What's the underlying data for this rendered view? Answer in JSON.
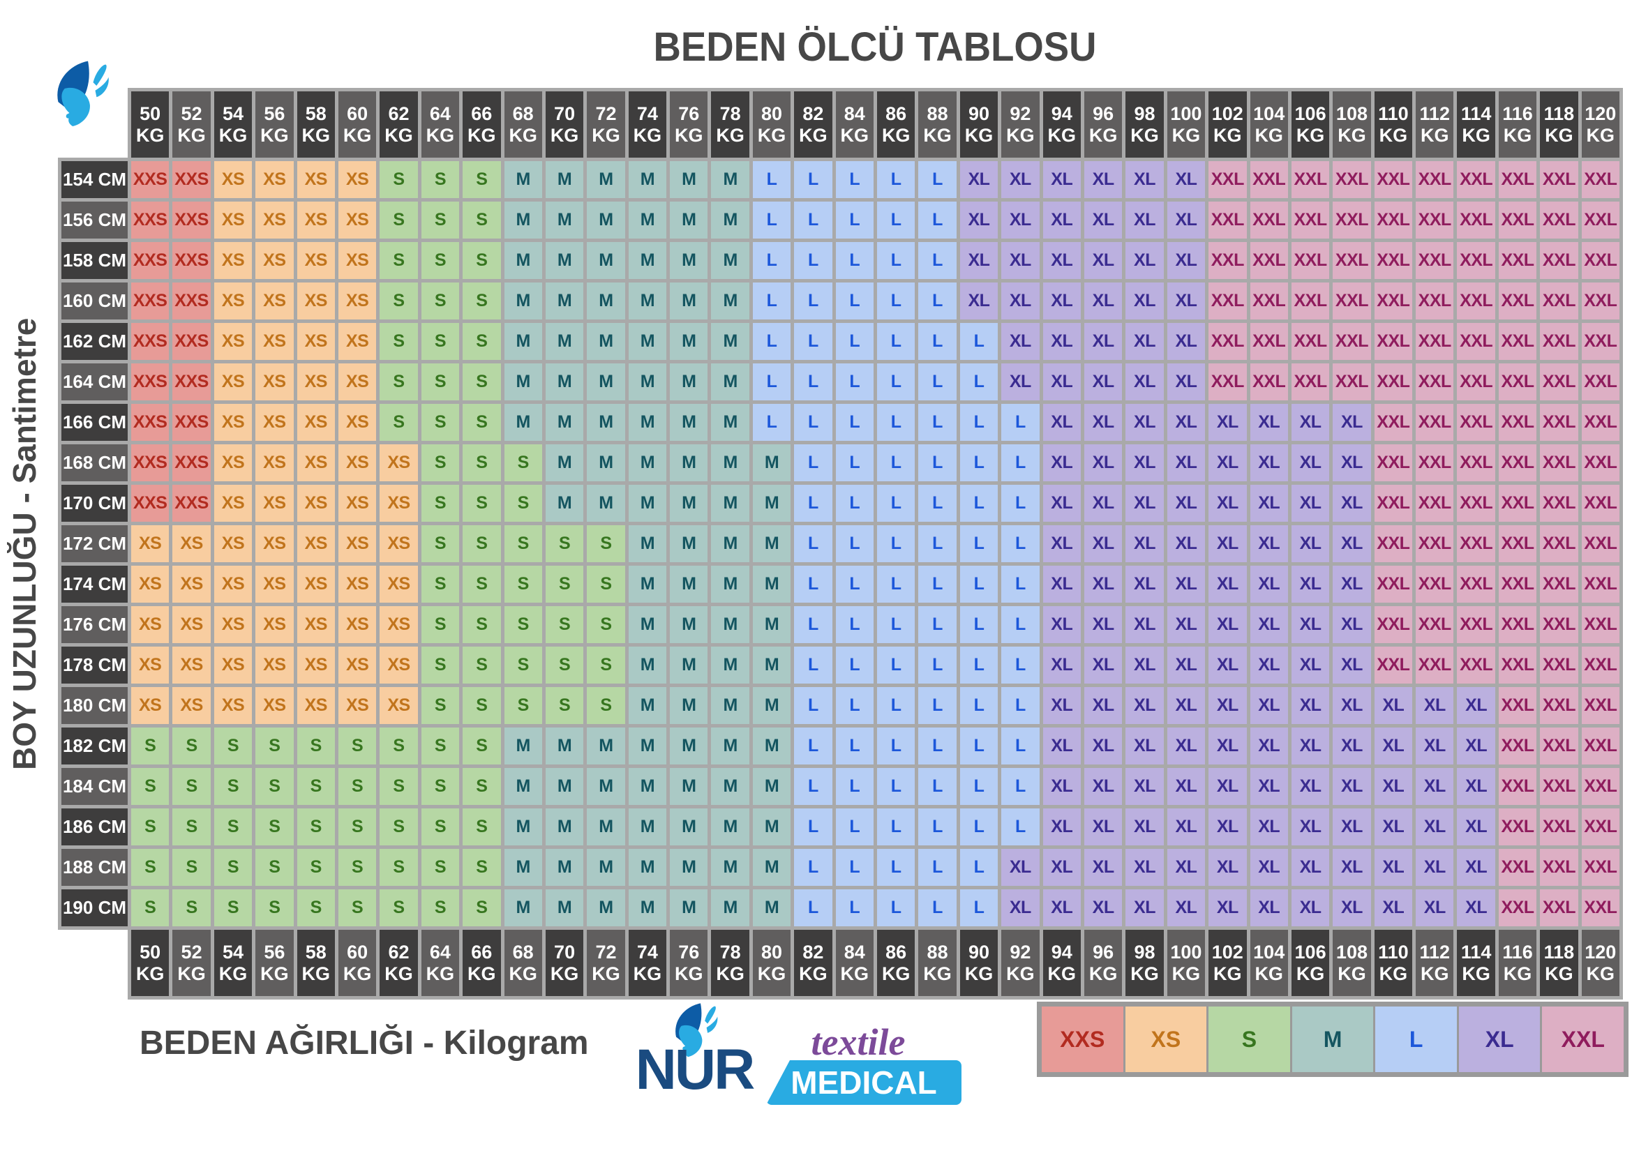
{
  "title": "BEDEN ÖLCÜ TABLOSU",
  "y_axis_label": "BOY UZUNLUĞU - Santimetre",
  "x_axis_label": "BEDEN AĞIRLIĞI - Kilogram",
  "weight_unit": "KG",
  "height_unit": "CM",
  "weights_kg": [
    50,
    52,
    54,
    56,
    58,
    60,
    62,
    64,
    66,
    68,
    70,
    72,
    74,
    76,
    78,
    80,
    82,
    84,
    86,
    88,
    90,
    92,
    94,
    96,
    98,
    100,
    102,
    104,
    106,
    108,
    110,
    112,
    114,
    116,
    118,
    120
  ],
  "heights_cm": [
    154,
    156,
    158,
    160,
    162,
    164,
    166,
    168,
    170,
    172,
    174,
    176,
    178,
    180,
    182,
    184,
    186,
    188,
    190
  ],
  "legend": [
    "XXS",
    "XS",
    "S",
    "M",
    "L",
    "XL",
    "XXL"
  ],
  "size_colors": {
    "XXS": {
      "bg": "#e79b97",
      "text": "#b22b20"
    },
    "XS": {
      "bg": "#f8cda0",
      "text": "#c1741c"
    },
    "S": {
      "bg": "#b6d7a4",
      "text": "#37761f"
    },
    "M": {
      "bg": "#aac9c5",
      "text": "#145560"
    },
    "L": {
      "bg": "#b6cef5",
      "text": "#1c57da"
    },
    "XL": {
      "bg": "#bbb0df",
      "text": "#3a2b90"
    },
    "XXL": {
      "bg": "#ddafc4",
      "text": "#8f1c5d"
    }
  },
  "header_colors": {
    "dark": "#3e3d3d",
    "light": "#605e5e",
    "text": "#ffffff"
  },
  "grid_color": "#a9a9a9",
  "logo": {
    "name": "NUR",
    "tagline1": "textile",
    "tagline2": "MEDICAL"
  },
  "chart_data": {
    "type": "heatmap",
    "title": "BEDEN ÖLCÜ TABLOSU",
    "xlabel": "BEDEN AĞIRLIĞI - Kilogram",
    "ylabel": "BOY UZUNLUĞU - Santimetre",
    "x_categories_kg": [
      50,
      52,
      54,
      56,
      58,
      60,
      62,
      64,
      66,
      68,
      70,
      72,
      74,
      76,
      78,
      80,
      82,
      84,
      86,
      88,
      90,
      92,
      94,
      96,
      98,
      100,
      102,
      104,
      106,
      108,
      110,
      112,
      114,
      116,
      118,
      120
    ],
    "y_categories_cm": [
      154,
      156,
      158,
      160,
      162,
      164,
      166,
      168,
      170,
      172,
      174,
      176,
      178,
      180,
      182,
      184,
      186,
      188,
      190
    ],
    "legend_entries": [
      "XXS",
      "XS",
      "S",
      "M",
      "L",
      "XL",
      "XXL"
    ],
    "legend_position": "bottom-right",
    "x_axis_shown": "top and bottom",
    "encoding": "rows are run-length encoded as [size, count] pairs left-to-right across the 36 weight columns",
    "rows": [
      {
        "height": 154,
        "runs": [
          [
            "XXS",
            2
          ],
          [
            "XS",
            4
          ],
          [
            "S",
            3
          ],
          [
            "M",
            6
          ],
          [
            "L",
            5
          ],
          [
            "XL",
            6
          ],
          [
            "XXL",
            10
          ]
        ]
      },
      {
        "height": 156,
        "runs": [
          [
            "XXS",
            2
          ],
          [
            "XS",
            4
          ],
          [
            "S",
            3
          ],
          [
            "M",
            6
          ],
          [
            "L",
            5
          ],
          [
            "XL",
            6
          ],
          [
            "XXL",
            10
          ]
        ]
      },
      {
        "height": 158,
        "runs": [
          [
            "XXS",
            2
          ],
          [
            "XS",
            4
          ],
          [
            "S",
            3
          ],
          [
            "M",
            6
          ],
          [
            "L",
            5
          ],
          [
            "XL",
            6
          ],
          [
            "XXL",
            10
          ]
        ]
      },
      {
        "height": 160,
        "runs": [
          [
            "XXS",
            2
          ],
          [
            "XS",
            4
          ],
          [
            "S",
            3
          ],
          [
            "M",
            6
          ],
          [
            "L",
            5
          ],
          [
            "XL",
            6
          ],
          [
            "XXL",
            10
          ]
        ]
      },
      {
        "height": 162,
        "runs": [
          [
            "XXS",
            2
          ],
          [
            "XS",
            4
          ],
          [
            "S",
            3
          ],
          [
            "M",
            6
          ],
          [
            "L",
            6
          ],
          [
            "XL",
            5
          ],
          [
            "XXL",
            10
          ]
        ]
      },
      {
        "height": 164,
        "runs": [
          [
            "XXS",
            2
          ],
          [
            "XS",
            4
          ],
          [
            "S",
            3
          ],
          [
            "M",
            6
          ],
          [
            "L",
            6
          ],
          [
            "XL",
            5
          ],
          [
            "XXL",
            10
          ]
        ]
      },
      {
        "height": 166,
        "runs": [
          [
            "XXS",
            2
          ],
          [
            "XS",
            4
          ],
          [
            "S",
            3
          ],
          [
            "M",
            6
          ],
          [
            "L",
            7
          ],
          [
            "XL",
            8
          ],
          [
            "XXL",
            6
          ]
        ]
      },
      {
        "height": 168,
        "runs": [
          [
            "XXS",
            2
          ],
          [
            "XS",
            5
          ],
          [
            "S",
            3
          ],
          [
            "M",
            6
          ],
          [
            "L",
            6
          ],
          [
            "XL",
            8
          ],
          [
            "XXL",
            6
          ]
        ]
      },
      {
        "height": 170,
        "runs": [
          [
            "XXS",
            2
          ],
          [
            "XS",
            5
          ],
          [
            "S",
            3
          ],
          [
            "M",
            6
          ],
          [
            "L",
            6
          ],
          [
            "XL",
            8
          ],
          [
            "XXL",
            6
          ]
        ]
      },
      {
        "height": 172,
        "runs": [
          [
            "XS",
            7
          ],
          [
            "S",
            5
          ],
          [
            "M",
            4
          ],
          [
            "L",
            6
          ],
          [
            "XL",
            8
          ],
          [
            "XXL",
            6
          ]
        ]
      },
      {
        "height": 174,
        "runs": [
          [
            "XS",
            7
          ],
          [
            "S",
            5
          ],
          [
            "M",
            4
          ],
          [
            "L",
            6
          ],
          [
            "XL",
            8
          ],
          [
            "XXL",
            6
          ]
        ]
      },
      {
        "height": 176,
        "runs": [
          [
            "XS",
            7
          ],
          [
            "S",
            5
          ],
          [
            "M",
            4
          ],
          [
            "L",
            6
          ],
          [
            "XL",
            8
          ],
          [
            "XXL",
            6
          ]
        ]
      },
      {
        "height": 178,
        "runs": [
          [
            "XS",
            7
          ],
          [
            "S",
            5
          ],
          [
            "M",
            4
          ],
          [
            "L",
            6
          ],
          [
            "XL",
            8
          ],
          [
            "XXL",
            6
          ]
        ]
      },
      {
        "height": 180,
        "runs": [
          [
            "XS",
            7
          ],
          [
            "S",
            5
          ],
          [
            "M",
            4
          ],
          [
            "L",
            6
          ],
          [
            "XL",
            11
          ],
          [
            "XXL",
            3
          ]
        ]
      },
      {
        "height": 182,
        "runs": [
          [
            "S",
            9
          ],
          [
            "M",
            7
          ],
          [
            "L",
            6
          ],
          [
            "XL",
            11
          ],
          [
            "XXL",
            3
          ]
        ]
      },
      {
        "height": 184,
        "runs": [
          [
            "S",
            9
          ],
          [
            "M",
            7
          ],
          [
            "L",
            6
          ],
          [
            "XL",
            11
          ],
          [
            "XXL",
            3
          ]
        ]
      },
      {
        "height": 186,
        "runs": [
          [
            "S",
            9
          ],
          [
            "M",
            7
          ],
          [
            "L",
            6
          ],
          [
            "XL",
            11
          ],
          [
            "XXL",
            3
          ]
        ]
      },
      {
        "height": 188,
        "runs": [
          [
            "S",
            9
          ],
          [
            "M",
            7
          ],
          [
            "L",
            5
          ],
          [
            "XL",
            12
          ],
          [
            "XXL",
            3
          ]
        ]
      },
      {
        "height": 190,
        "runs": [
          [
            "S",
            9
          ],
          [
            "M",
            7
          ],
          [
            "L",
            5
          ],
          [
            "XL",
            12
          ],
          [
            "XXL",
            3
          ]
        ]
      }
    ]
  }
}
